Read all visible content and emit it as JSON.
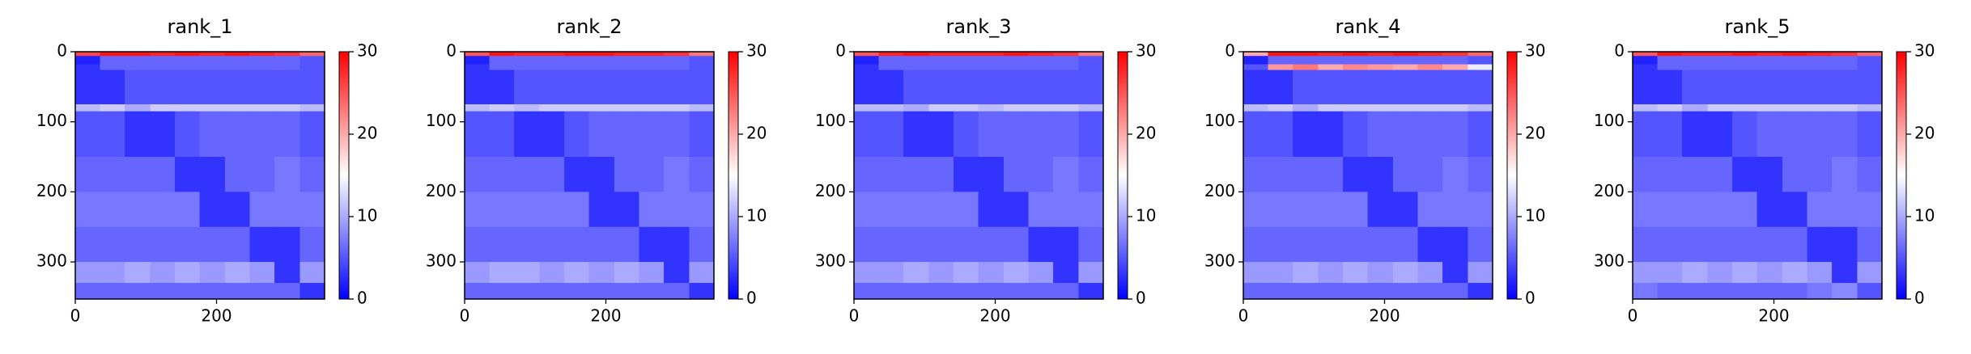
{
  "chart_data": [
    {
      "type": "heatmap",
      "title": "rank_1",
      "cmap": "bwr",
      "clim": [
        0,
        30
      ],
      "cbar_ticks": [
        0,
        10,
        20,
        30
      ],
      "xlim": [
        0,
        353
      ],
      "ylim": [
        0,
        353
      ],
      "y_inverted": true,
      "xticks": [
        0,
        200
      ],
      "yticks": [
        0,
        100,
        200,
        300
      ],
      "xbins": [
        0,
        35,
        70,
        106,
        141,
        176,
        212,
        247,
        282,
        318,
        353
      ],
      "ybins": [
        0,
        6,
        18,
        26,
        75,
        85,
        150,
        200,
        250,
        300,
        330,
        353
      ],
      "z": [
        [
          26,
          29,
          29,
          28,
          29,
          28,
          29,
          28,
          27,
          24
        ],
        [
          2,
          6,
          6,
          6,
          6,
          6,
          6,
          6,
          6,
          5
        ],
        [
          3,
          6,
          6,
          6,
          6,
          6,
          6,
          6,
          6,
          5
        ],
        [
          3,
          3,
          5,
          5,
          5,
          5,
          5,
          5,
          5,
          5
        ],
        [
          11,
          12,
          10,
          12,
          12,
          12,
          12,
          12,
          12,
          11
        ],
        [
          5,
          5,
          3,
          3,
          5,
          6,
          6,
          6,
          6,
          5
        ],
        [
          6,
          6,
          6,
          6,
          3,
          3,
          6,
          6,
          7,
          6
        ],
        [
          7,
          7,
          7,
          7,
          7,
          3,
          3,
          7,
          7,
          7
        ],
        [
          6,
          6,
          6,
          6,
          6,
          6,
          6,
          3,
          3,
          6
        ],
        [
          9,
          9,
          10,
          9,
          10,
          9,
          10,
          9,
          3,
          9
        ],
        [
          6,
          6,
          6,
          6,
          6,
          6,
          6,
          6,
          6,
          3
        ]
      ]
    },
    {
      "type": "heatmap",
      "title": "rank_2",
      "cmap": "bwr",
      "clim": [
        0,
        30
      ],
      "cbar_ticks": [
        0,
        10,
        20,
        30
      ],
      "xlim": [
        0,
        353
      ],
      "ylim": [
        0,
        353
      ],
      "y_inverted": true,
      "xticks": [
        0,
        200
      ],
      "yticks": [
        0,
        100,
        200,
        300
      ],
      "xbins": [
        0,
        35,
        70,
        106,
        141,
        176,
        212,
        247,
        282,
        318,
        353
      ],
      "ybins": [
        0,
        6,
        18,
        26,
        75,
        85,
        150,
        200,
        250,
        300,
        330,
        353
      ],
      "z": [
        [
          25,
          29,
          28,
          28,
          29,
          29,
          28,
          28,
          27,
          23
        ],
        [
          2,
          6,
          6,
          6,
          6,
          6,
          6,
          6,
          6,
          5
        ],
        [
          3,
          6,
          6,
          6,
          6,
          6,
          6,
          6,
          6,
          5
        ],
        [
          3,
          3,
          5,
          5,
          5,
          5,
          5,
          5,
          5,
          5
        ],
        [
          11,
          12,
          11,
          12,
          12,
          12,
          12,
          12,
          12,
          11
        ],
        [
          5,
          5,
          3,
          3,
          5,
          6,
          6,
          6,
          6,
          5
        ],
        [
          6,
          6,
          6,
          6,
          3,
          3,
          6,
          6,
          7,
          6
        ],
        [
          7,
          7,
          7,
          7,
          7,
          3,
          3,
          7,
          7,
          7
        ],
        [
          6,
          6,
          6,
          6,
          6,
          6,
          6,
          3,
          3,
          6
        ],
        [
          9,
          10,
          10,
          9,
          10,
          9,
          10,
          9,
          3,
          9
        ],
        [
          6,
          6,
          6,
          6,
          6,
          6,
          6,
          6,
          6,
          3
        ]
      ]
    },
    {
      "type": "heatmap",
      "title": "rank_3",
      "cmap": "bwr",
      "clim": [
        0,
        30
      ],
      "cbar_ticks": [
        0,
        10,
        20,
        30
      ],
      "xlim": [
        0,
        353
      ],
      "ylim": [
        0,
        353
      ],
      "y_inverted": true,
      "xticks": [
        0,
        200
      ],
      "yticks": [
        0,
        100,
        200,
        300
      ],
      "xbins": [
        0,
        35,
        70,
        106,
        141,
        176,
        212,
        247,
        282,
        318,
        353
      ],
      "ybins": [
        0,
        6,
        18,
        26,
        75,
        85,
        150,
        200,
        250,
        300,
        330,
        353
      ],
      "z": [
        [
          25,
          28,
          29,
          28,
          28,
          28,
          29,
          28,
          27,
          23
        ],
        [
          2,
          6,
          6,
          6,
          6,
          6,
          6,
          6,
          6,
          5
        ],
        [
          3,
          6,
          6,
          6,
          6,
          6,
          6,
          6,
          6,
          5
        ],
        [
          3,
          3,
          5,
          5,
          5,
          5,
          5,
          5,
          5,
          5
        ],
        [
          11,
          11,
          10,
          12,
          12,
          11,
          12,
          12,
          12,
          11
        ],
        [
          5,
          5,
          3,
          3,
          5,
          6,
          6,
          6,
          6,
          5
        ],
        [
          6,
          6,
          6,
          6,
          3,
          3,
          6,
          6,
          7,
          6
        ],
        [
          7,
          7,
          7,
          7,
          7,
          3,
          3,
          7,
          7,
          7
        ],
        [
          6,
          6,
          6,
          6,
          6,
          6,
          6,
          3,
          3,
          6
        ],
        [
          9,
          9,
          10,
          9,
          10,
          9,
          10,
          9,
          3,
          9
        ],
        [
          6,
          6,
          6,
          6,
          6,
          6,
          6,
          6,
          6,
          3
        ]
      ]
    },
    {
      "type": "heatmap",
      "title": "rank_4",
      "cmap": "bwr",
      "clim": [
        0,
        30
      ],
      "cbar_ticks": [
        0,
        10,
        20,
        30
      ],
      "xlim": [
        0,
        353
      ],
      "ylim": [
        0,
        353
      ],
      "y_inverted": true,
      "xticks": [
        0,
        200
      ],
      "yticks": [
        0,
        100,
        200,
        300
      ],
      "xbins": [
        0,
        35,
        70,
        106,
        141,
        176,
        212,
        247,
        282,
        318,
        353
      ],
      "ybins": [
        0,
        6,
        18,
        26,
        75,
        85,
        150,
        200,
        250,
        300,
        330,
        353
      ],
      "z": [
        [
          20,
          29,
          29,
          28,
          29,
          28,
          29,
          28,
          27,
          24
        ],
        [
          2,
          6,
          6,
          6,
          6,
          6,
          6,
          6,
          6,
          5
        ],
        [
          5,
          21,
          23,
          20,
          22,
          21,
          20,
          22,
          20,
          14
        ],
        [
          3,
          3,
          5,
          5,
          5,
          5,
          5,
          5,
          5,
          5
        ],
        [
          11,
          12,
          10,
          12,
          12,
          12,
          12,
          12,
          12,
          11
        ],
        [
          5,
          5,
          3,
          3,
          5,
          6,
          6,
          6,
          6,
          5
        ],
        [
          6,
          6,
          6,
          6,
          3,
          3,
          6,
          6,
          7,
          6
        ],
        [
          7,
          7,
          7,
          7,
          7,
          3,
          3,
          7,
          7,
          7
        ],
        [
          6,
          6,
          6,
          6,
          6,
          6,
          6,
          3,
          3,
          6
        ],
        [
          9,
          9,
          10,
          9,
          10,
          9,
          10,
          9,
          3,
          9
        ],
        [
          6,
          6,
          6,
          6,
          6,
          6,
          6,
          6,
          6,
          3
        ]
      ]
    },
    {
      "type": "heatmap",
      "title": "rank_5",
      "cmap": "bwr",
      "clim": [
        0,
        30
      ],
      "cbar_ticks": [
        0,
        10,
        20,
        30
      ],
      "xlim": [
        0,
        353
      ],
      "ylim": [
        0,
        353
      ],
      "y_inverted": true,
      "xticks": [
        0,
        200
      ],
      "yticks": [
        0,
        100,
        200,
        300
      ],
      "xbins": [
        0,
        35,
        70,
        106,
        141,
        176,
        212,
        247,
        282,
        318,
        353
      ],
      "ybins": [
        0,
        6,
        18,
        26,
        75,
        85,
        150,
        200,
        250,
        300,
        330,
        353
      ],
      "z": [
        [
          25,
          29,
          28,
          28,
          29,
          28,
          29,
          28,
          27,
          24
        ],
        [
          2,
          6,
          6,
          6,
          6,
          6,
          6,
          6,
          6,
          5
        ],
        [
          3,
          6,
          6,
          6,
          6,
          6,
          6,
          6,
          6,
          5
        ],
        [
          3,
          3,
          5,
          5,
          5,
          5,
          5,
          5,
          5,
          5
        ],
        [
          11,
          12,
          10,
          12,
          12,
          12,
          12,
          12,
          12,
          11
        ],
        [
          5,
          5,
          3,
          3,
          5,
          6,
          6,
          6,
          6,
          5
        ],
        [
          6,
          6,
          6,
          6,
          3,
          3,
          6,
          6,
          7,
          6
        ],
        [
          7,
          7,
          7,
          7,
          7,
          3,
          3,
          7,
          7,
          7
        ],
        [
          6,
          6,
          6,
          6,
          6,
          6,
          6,
          3,
          3,
          6
        ],
        [
          9,
          9,
          10,
          9,
          10,
          9,
          10,
          9,
          3,
          9
        ],
        [
          7,
          6,
          6,
          6,
          6,
          6,
          6,
          7,
          8,
          5
        ]
      ]
    }
  ]
}
